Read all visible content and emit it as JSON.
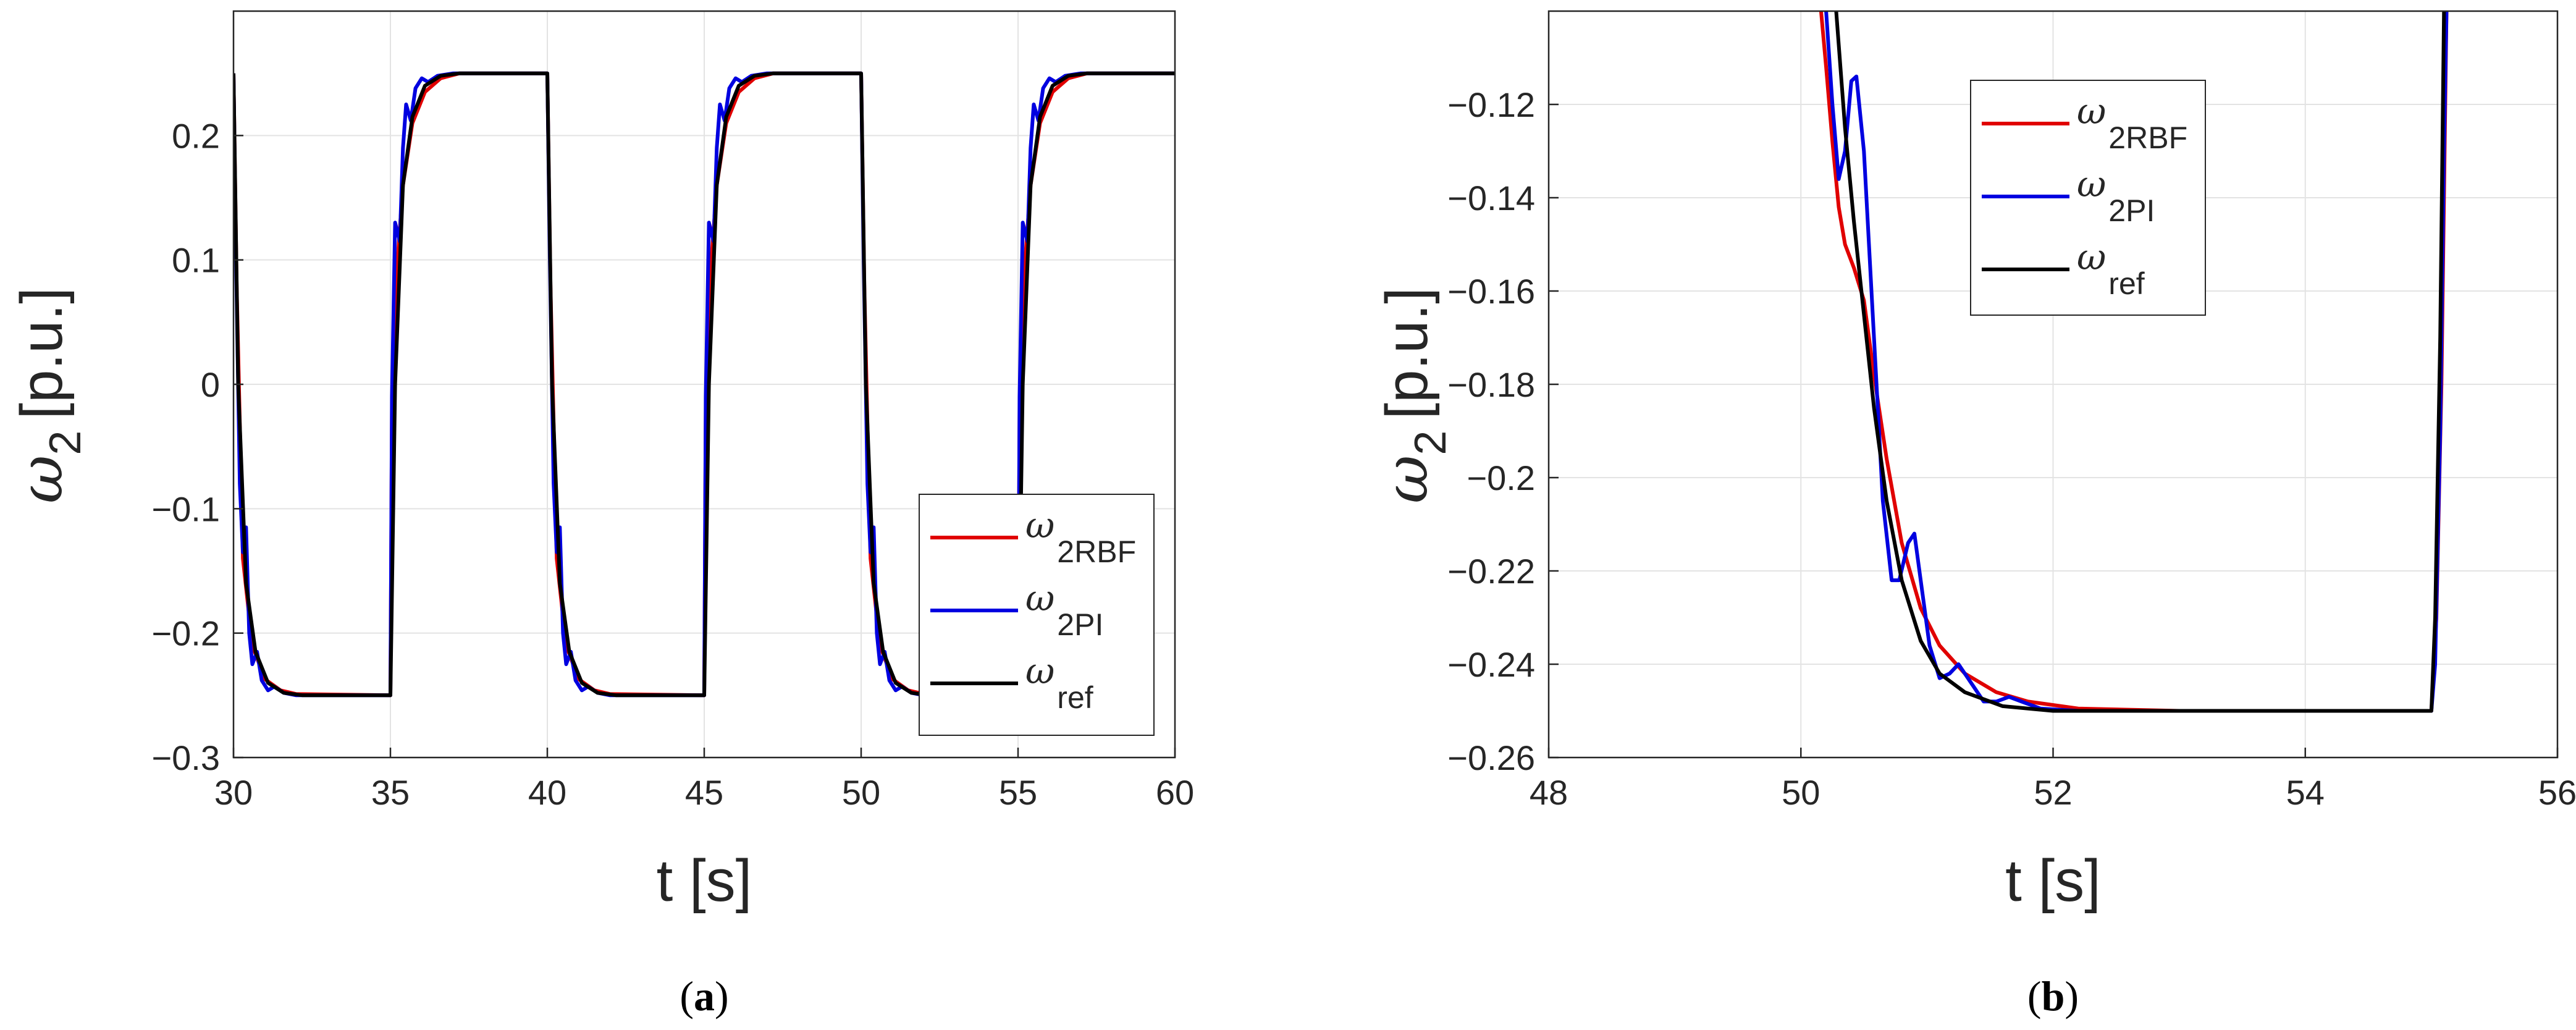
{
  "chart_data": [
    {
      "type": "line",
      "panel_label": "a",
      "xlabel": "t [s]",
      "ylabel": "ω",
      "ylabel_sub": "2",
      "ylabel_unit": "[p.u.]",
      "xlim": [
        30,
        60
      ],
      "ylim": [
        -0.3,
        0.3
      ],
      "xticks": [
        30,
        35,
        40,
        45,
        50,
        55,
        60
      ],
      "xtick_labels": [
        "30",
        "35",
        "40",
        "45",
        "50",
        "55",
        "60"
      ],
      "yticks": [
        -0.3,
        -0.2,
        -0.1,
        0,
        0.1,
        0.2
      ],
      "ytick_labels": [
        "−0.3",
        "−0.2",
        "−0.1",
        "0",
        "0.1",
        "0.2"
      ],
      "grid": true,
      "legend_position": "bottom-right",
      "series": [
        {
          "name": "ω",
          "sub": "2RBF",
          "color": "#e00000",
          "points": [
            [
              30.0,
              0.25
            ],
            [
              30.1,
              0.08
            ],
            [
              30.3,
              -0.14
            ],
            [
              30.6,
              -0.21
            ],
            [
              31.0,
              -0.237
            ],
            [
              31.5,
              -0.246
            ],
            [
              32.0,
              -0.249
            ],
            [
              35.0,
              -0.25
            ],
            [
              35.05,
              -0.02
            ],
            [
              35.2,
              0.09
            ],
            [
              35.4,
              0.16
            ],
            [
              35.7,
              0.21
            ],
            [
              36.1,
              0.235
            ],
            [
              36.6,
              0.246
            ],
            [
              37.2,
              0.25
            ],
            [
              40.0,
              0.25
            ],
            [
              40.1,
              0.08
            ],
            [
              40.3,
              -0.14
            ],
            [
              40.6,
              -0.21
            ],
            [
              41.0,
              -0.237
            ],
            [
              41.5,
              -0.246
            ],
            [
              42.0,
              -0.249
            ],
            [
              45.0,
              -0.25
            ],
            [
              45.05,
              -0.02
            ],
            [
              45.2,
              0.09
            ],
            [
              45.4,
              0.16
            ],
            [
              45.7,
              0.21
            ],
            [
              46.1,
              0.235
            ],
            [
              46.6,
              0.246
            ],
            [
              47.2,
              0.25
            ],
            [
              50.0,
              0.25
            ],
            [
              50.1,
              0.08
            ],
            [
              50.3,
              -0.14
            ],
            [
              50.6,
              -0.21
            ],
            [
              51.0,
              -0.237
            ],
            [
              51.5,
              -0.246
            ],
            [
              52.0,
              -0.249
            ],
            [
              55.0,
              -0.25
            ],
            [
              55.05,
              -0.02
            ],
            [
              55.2,
              0.09
            ],
            [
              55.4,
              0.16
            ],
            [
              55.7,
              0.21
            ],
            [
              56.1,
              0.235
            ],
            [
              56.6,
              0.246
            ],
            [
              57.2,
              0.25
            ],
            [
              60.0,
              0.25
            ]
          ]
        },
        {
          "name": "ω",
          "sub": "2PI",
          "color": "#0000e0",
          "points": [
            [
              30.0,
              0.25
            ],
            [
              30.08,
              0.1
            ],
            [
              30.2,
              -0.08
            ],
            [
              30.3,
              -0.135
            ],
            [
              30.4,
              -0.115
            ],
            [
              30.5,
              -0.2
            ],
            [
              30.6,
              -0.225
            ],
            [
              30.75,
              -0.215
            ],
            [
              30.9,
              -0.238
            ],
            [
              31.1,
              -0.246
            ],
            [
              31.3,
              -0.243
            ],
            [
              31.6,
              -0.248
            ],
            [
              32.0,
              -0.25
            ],
            [
              35.0,
              -0.25
            ],
            [
              35.05,
              -0.01
            ],
            [
              35.15,
              0.13
            ],
            [
              35.3,
              0.115
            ],
            [
              35.4,
              0.19
            ],
            [
              35.5,
              0.225
            ],
            [
              35.65,
              0.212
            ],
            [
              35.8,
              0.238
            ],
            [
              36.0,
              0.246
            ],
            [
              36.2,
              0.243
            ],
            [
              36.5,
              0.248
            ],
            [
              37.0,
              0.25
            ],
            [
              40.0,
              0.25
            ],
            [
              40.08,
              0.1
            ],
            [
              40.2,
              -0.08
            ],
            [
              40.3,
              -0.135
            ],
            [
              40.4,
              -0.115
            ],
            [
              40.5,
              -0.2
            ],
            [
              40.6,
              -0.225
            ],
            [
              40.75,
              -0.215
            ],
            [
              40.9,
              -0.238
            ],
            [
              41.1,
              -0.246
            ],
            [
              41.3,
              -0.243
            ],
            [
              41.6,
              -0.248
            ],
            [
              42.0,
              -0.25
            ],
            [
              45.0,
              -0.25
            ],
            [
              45.05,
              -0.01
            ],
            [
              45.15,
              0.13
            ],
            [
              45.3,
              0.115
            ],
            [
              45.4,
              0.19
            ],
            [
              45.5,
              0.225
            ],
            [
              45.65,
              0.212
            ],
            [
              45.8,
              0.238
            ],
            [
              46.0,
              0.246
            ],
            [
              46.2,
              0.243
            ],
            [
              46.5,
              0.248
            ],
            [
              47.0,
              0.25
            ],
            [
              50.0,
              0.25
            ],
            [
              50.08,
              0.1
            ],
            [
              50.2,
              -0.08
            ],
            [
              50.3,
              -0.135
            ],
            [
              50.4,
              -0.115
            ],
            [
              50.5,
              -0.2
            ],
            [
              50.6,
              -0.225
            ],
            [
              50.75,
              -0.215
            ],
            [
              50.9,
              -0.238
            ],
            [
              51.1,
              -0.246
            ],
            [
              51.3,
              -0.243
            ],
            [
              51.6,
              -0.248
            ],
            [
              52.0,
              -0.25
            ],
            [
              55.0,
              -0.25
            ],
            [
              55.05,
              -0.01
            ],
            [
              55.15,
              0.13
            ],
            [
              55.3,
              0.115
            ],
            [
              55.4,
              0.19
            ],
            [
              55.5,
              0.225
            ],
            [
              55.65,
              0.212
            ],
            [
              55.8,
              0.238
            ],
            [
              56.0,
              0.246
            ],
            [
              56.2,
              0.243
            ],
            [
              56.5,
              0.248
            ],
            [
              57.0,
              0.25
            ],
            [
              60.0,
              0.25
            ]
          ]
        },
        {
          "name": "ω",
          "sub": "ref",
          "color": "#000000",
          "points": [
            [
              30.0,
              0.25
            ],
            [
              30.15,
              0.0
            ],
            [
              30.4,
              -0.16
            ],
            [
              30.7,
              -0.215
            ],
            [
              31.1,
              -0.24
            ],
            [
              31.6,
              -0.248
            ],
            [
              32.2,
              -0.25
            ],
            [
              35.0,
              -0.25
            ],
            [
              35.15,
              0.0
            ],
            [
              35.4,
              0.16
            ],
            [
              35.7,
              0.215
            ],
            [
              36.1,
              0.24
            ],
            [
              36.6,
              0.248
            ],
            [
              37.2,
              0.25
            ],
            [
              40.0,
              0.25
            ],
            [
              40.15,
              0.0
            ],
            [
              40.4,
              -0.16
            ],
            [
              40.7,
              -0.215
            ],
            [
              41.1,
              -0.24
            ],
            [
              41.6,
              -0.248
            ],
            [
              42.2,
              -0.25
            ],
            [
              45.0,
              -0.25
            ],
            [
              45.15,
              0.0
            ],
            [
              45.4,
              0.16
            ],
            [
              45.7,
              0.215
            ],
            [
              46.1,
              0.24
            ],
            [
              46.6,
              0.248
            ],
            [
              47.2,
              0.25
            ],
            [
              50.0,
              0.25
            ],
            [
              50.15,
              0.0
            ],
            [
              50.4,
              -0.16
            ],
            [
              50.7,
              -0.215
            ],
            [
              51.1,
              -0.24
            ],
            [
              51.6,
              -0.248
            ],
            [
              52.2,
              -0.25
            ],
            [
              55.0,
              -0.25
            ],
            [
              55.15,
              0.0
            ],
            [
              55.4,
              0.16
            ],
            [
              55.7,
              0.215
            ],
            [
              56.1,
              0.24
            ],
            [
              56.6,
              0.248
            ],
            [
              57.2,
              0.25
            ],
            [
              60.0,
              0.25
            ]
          ]
        }
      ]
    },
    {
      "type": "line",
      "panel_label": "b",
      "xlabel": "t [s]",
      "ylabel": "ω",
      "ylabel_sub": "2",
      "ylabel_unit": "[p.u.]",
      "xlim": [
        48,
        56
      ],
      "ylim": [
        -0.26,
        -0.1
      ],
      "xticks": [
        48,
        50,
        52,
        54,
        56
      ],
      "xtick_labels": [
        "48",
        "50",
        "52",
        "54",
        "56"
      ],
      "yticks": [
        -0.26,
        -0.24,
        -0.22,
        -0.2,
        -0.18,
        -0.16,
        -0.14,
        -0.12
      ],
      "ytick_labels": [
        "−0.26",
        "−0.24",
        "−0.22",
        "−0.2",
        "−0.18",
        "−0.16",
        "−0.14",
        "−0.12"
      ],
      "grid": true,
      "legend_position": "top-left",
      "series": [
        {
          "name": "ω",
          "sub": "2RBF",
          "color": "#e00000",
          "points": [
            [
              50.16,
              -0.1
            ],
            [
              50.2,
              -0.112
            ],
            [
              50.25,
              -0.128
            ],
            [
              50.3,
              -0.142
            ],
            [
              50.35,
              -0.15
            ],
            [
              50.42,
              -0.155
            ],
            [
              50.5,
              -0.162
            ],
            [
              50.58,
              -0.178
            ],
            [
              50.68,
              -0.196
            ],
            [
              50.8,
              -0.214
            ],
            [
              50.95,
              -0.228
            ],
            [
              51.1,
              -0.236
            ],
            [
              51.3,
              -0.242
            ],
            [
              51.55,
              -0.246
            ],
            [
              51.8,
              -0.248
            ],
            [
              52.2,
              -0.2495
            ],
            [
              53.0,
              -0.25
            ],
            [
              55.0,
              -0.25
            ],
            [
              55.04,
              -0.23
            ],
            [
              55.08,
              -0.18
            ],
            [
              55.12,
              -0.1
            ]
          ]
        },
        {
          "name": "ω",
          "sub": "2PI",
          "color": "#0000e0",
          "points": [
            [
              50.2,
              -0.1
            ],
            [
              50.25,
              -0.12
            ],
            [
              50.3,
              -0.136
            ],
            [
              50.35,
              -0.13
            ],
            [
              50.4,
              -0.115
            ],
            [
              50.44,
              -0.114
            ],
            [
              50.5,
              -0.13
            ],
            [
              50.58,
              -0.17
            ],
            [
              50.65,
              -0.205
            ],
            [
              50.72,
              -0.222
            ],
            [
              50.78,
              -0.222
            ],
            [
              50.85,
              -0.214
            ],
            [
              50.9,
              -0.212
            ],
            [
              50.95,
              -0.222
            ],
            [
              51.02,
              -0.236
            ],
            [
              51.1,
              -0.243
            ],
            [
              51.18,
              -0.242
            ],
            [
              51.25,
              -0.24
            ],
            [
              51.35,
              -0.244
            ],
            [
              51.45,
              -0.248
            ],
            [
              51.55,
              -0.248
            ],
            [
              51.65,
              -0.247
            ],
            [
              51.75,
              -0.248
            ],
            [
              51.9,
              -0.2495
            ],
            [
              52.2,
              -0.25
            ],
            [
              55.0,
              -0.25
            ],
            [
              55.03,
              -0.24
            ],
            [
              55.07,
              -0.19
            ],
            [
              55.1,
              -0.13
            ],
            [
              55.12,
              -0.1
            ]
          ]
        },
        {
          "name": "ω",
          "sub": "ref",
          "color": "#000000",
          "points": [
            [
              50.28,
              -0.1
            ],
            [
              50.35,
              -0.125
            ],
            [
              50.42,
              -0.145
            ],
            [
              50.5,
              -0.165
            ],
            [
              50.58,
              -0.185
            ],
            [
              50.68,
              -0.205
            ],
            [
              50.8,
              -0.222
            ],
            [
              50.95,
              -0.235
            ],
            [
              51.1,
              -0.242
            ],
            [
              51.3,
              -0.246
            ],
            [
              51.6,
              -0.249
            ],
            [
              52.0,
              -0.25
            ],
            [
              55.0,
              -0.25
            ],
            [
              55.03,
              -0.23
            ],
            [
              55.07,
              -0.17
            ],
            [
              55.1,
              -0.1
            ]
          ]
        }
      ]
    }
  ]
}
